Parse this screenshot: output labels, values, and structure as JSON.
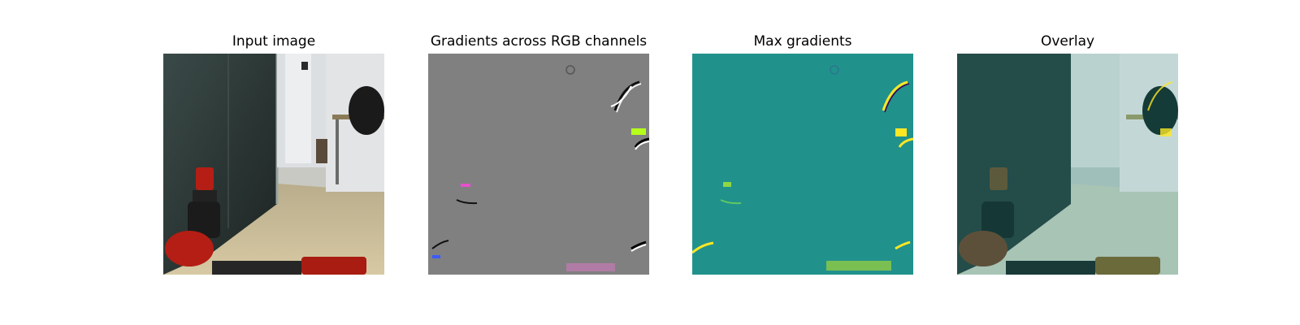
{
  "panels": [
    {
      "title": "Input image"
    },
    {
      "title": "Gradients across RGB channels"
    },
    {
      "title": "Max gradients"
    },
    {
      "title": "Overlay"
    }
  ],
  "colors": {
    "background": "#ffffff",
    "gradient_gray": "#808080",
    "viridis_teal": "#21918c",
    "viridis_yellow": "#fde725",
    "robot_red": "#b41e14",
    "floor_beige": "#c9b98f"
  }
}
